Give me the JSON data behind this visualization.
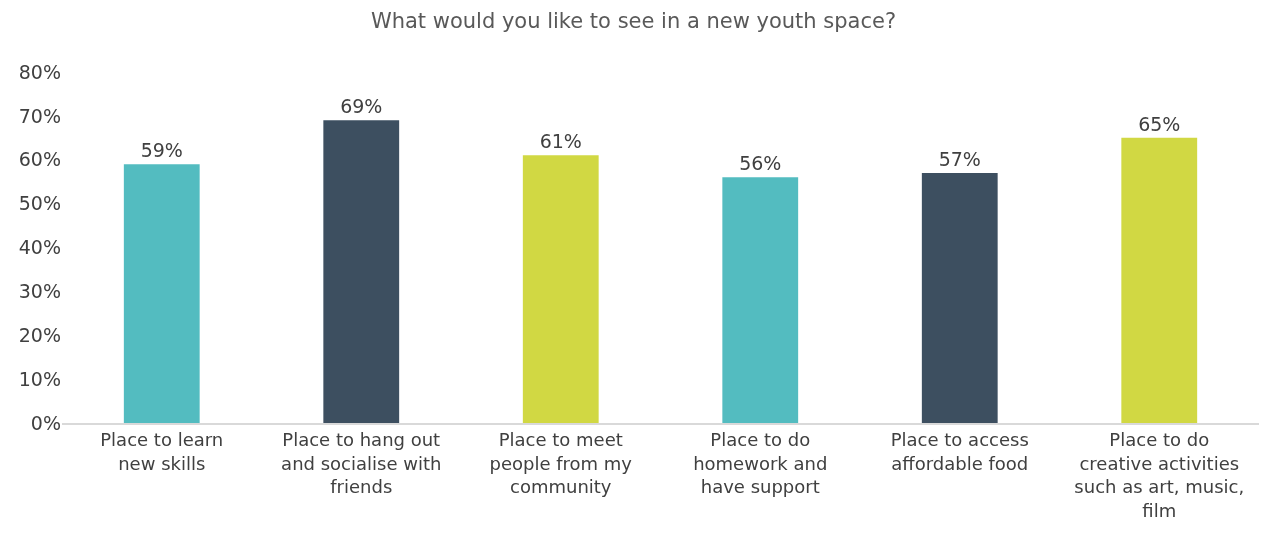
{
  "chart_data": {
    "type": "bar",
    "title": "What would you like to see in a new youth space?",
    "categories": [
      "Place to learn new skills",
      "Place to hang out and socialise with friends",
      "Place to meet people from my community",
      "Place to do homework and have support",
      "Place to access affordable food",
      "Place to do creative activities such as art, music, film"
    ],
    "values": [
      59,
      69,
      61,
      56,
      57,
      65
    ],
    "colors": [
      "#53bcc0",
      "#3d4f60",
      "#d1d843",
      "#53bcc0",
      "#3d4f60",
      "#d1d843"
    ],
    "value_labels": [
      "59%",
      "69%",
      "61%",
      "56%",
      "57%",
      "65%"
    ],
    "ylim": [
      0,
      80
    ],
    "yticks": [
      {
        "value": 0,
        "label": "0%"
      },
      {
        "value": 10,
        "label": "10%"
      },
      {
        "value": 20,
        "label": "20%"
      },
      {
        "value": 30,
        "label": "30%"
      },
      {
        "value": 40,
        "label": "40%"
      },
      {
        "value": 50,
        "label": "50%"
      },
      {
        "value": 60,
        "label": "60%"
      },
      {
        "value": 70,
        "label": "70%"
      },
      {
        "value": 80,
        "label": "80%"
      }
    ],
    "grid": false
  }
}
